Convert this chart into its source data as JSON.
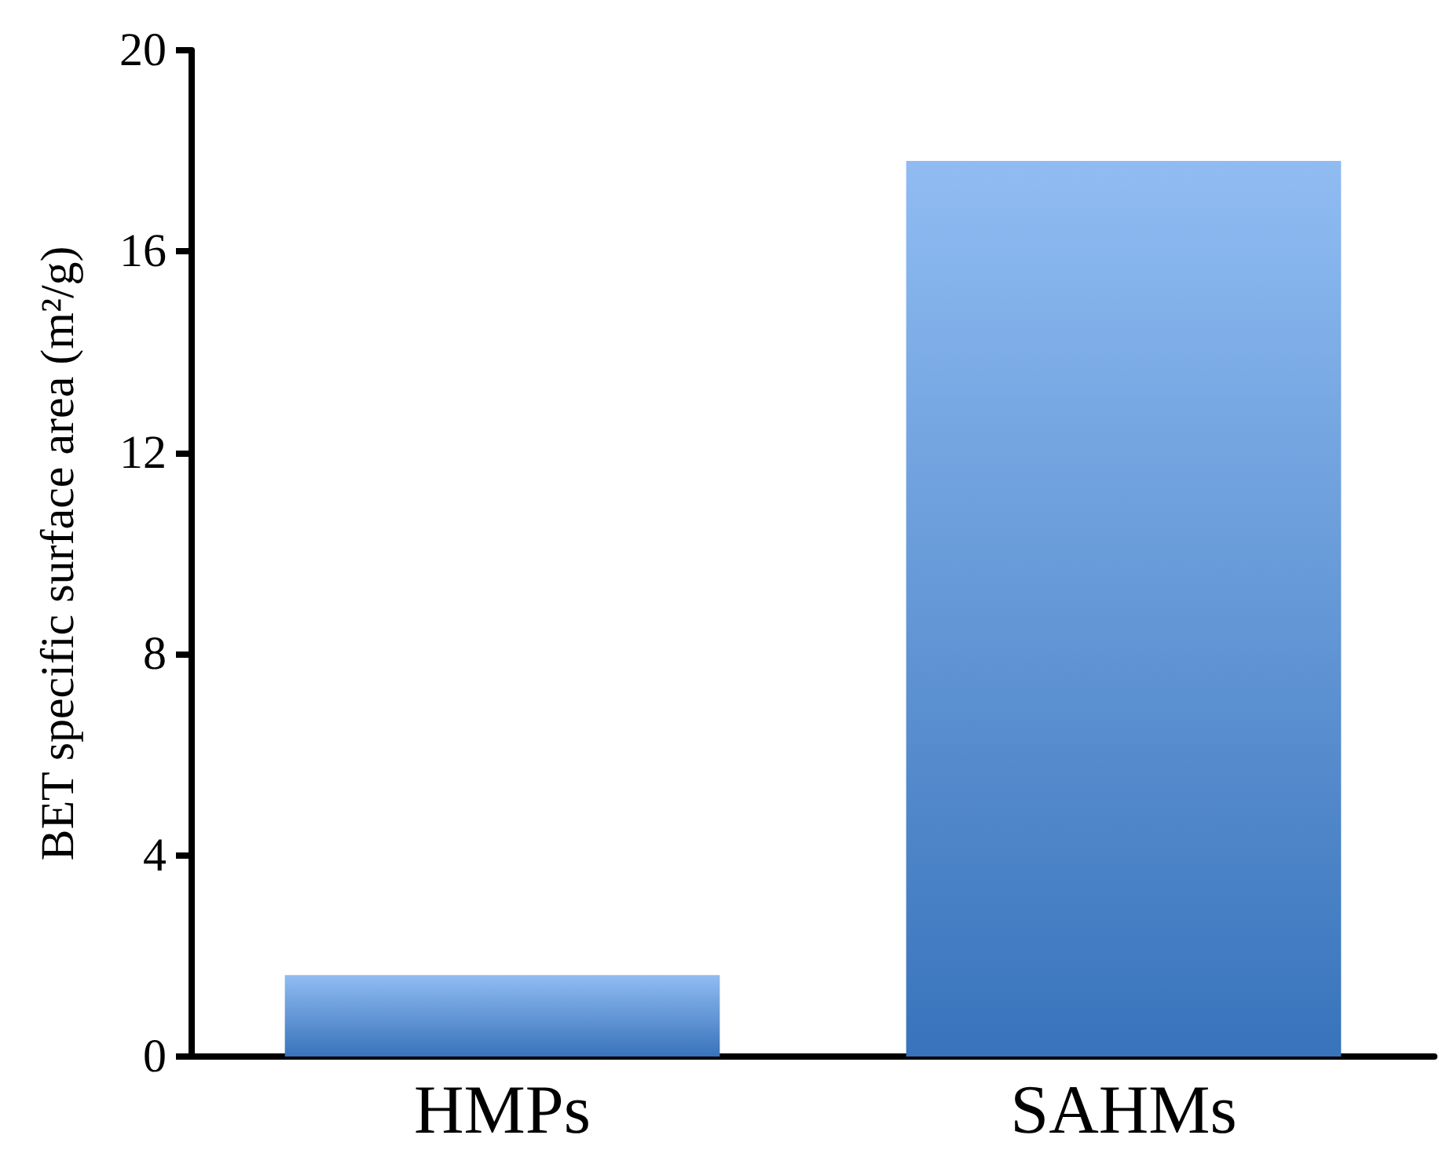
{
  "chart_data": {
    "type": "bar",
    "ylabel": "BET specific surface area (m²/g)",
    "categories": [
      "HMPs",
      "SAHMs"
    ],
    "values": [
      1.62,
      17.8
    ],
    "color": "#4690ea",
    "ylim": [
      0,
      20
    ],
    "yticks": [
      0,
      4,
      8,
      12,
      16,
      20
    ],
    "grid": false
  }
}
